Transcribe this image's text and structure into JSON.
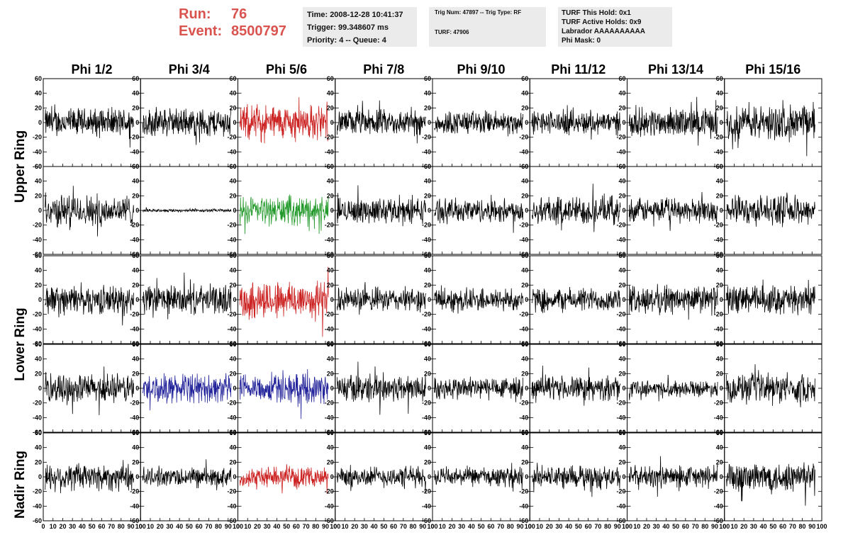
{
  "header": {
    "run_label": "Run:",
    "run_value": "76",
    "event_label": "Event:",
    "event_value": "8500797"
  },
  "info1": {
    "time": "Time: 2008-12-28 10:41:37",
    "trigger": "Trigger: 99.348607 ms",
    "priority": "Priority: 4 -- Queue: 4"
  },
  "info2": {
    "trig": "Trig Num: 47897 -- Trig Type: RF",
    "turf": "TURF: 47906"
  },
  "info3": {
    "hold": "TURF This Hold: 0x1",
    "active": "TURF Active Holds: 0x9",
    "labrador": "Labrador AAAAAAAAAA",
    "mask": "Phi Mask: 0"
  },
  "columns": [
    "Phi 1/2",
    "Phi 3/4",
    "Phi 5/6",
    "Phi 7/8",
    "Phi 9/10",
    "Phi 11/12",
    "Phi 13/14",
    "Phi 15/16"
  ],
  "row_labels": {
    "upper": "Upper Ring",
    "lower": "Lower Ring",
    "nadir": "Nadir Ring"
  },
  "colors": {
    "default": "#000000",
    "red": "#cc2222",
    "green": "#22992a",
    "blue": "#22229a",
    "info_bg": "#ebebeb",
    "header_red": "#d9534f"
  },
  "chart_data": {
    "type": "line",
    "description_of_grid": "5 rows x 8 columns of waveform panels",
    "xlim": [
      0,
      100
    ],
    "ylim": [
      -60,
      60
    ],
    "x_ticks": [
      0,
      10,
      20,
      30,
      40,
      50,
      60,
      70,
      80,
      90,
      100
    ],
    "y_ticks": [
      -60,
      -40,
      -20,
      0,
      20,
      40,
      60
    ],
    "x_tick_labels": [
      "0",
      "10",
      "20",
      "30",
      "40",
      "50",
      "60",
      "70",
      "80",
      "90",
      "100"
    ],
    "y_tick_labels": [
      "-60",
      "-40",
      "-20",
      "0",
      "20",
      "40",
      "60"
    ],
    "x_label_text": "0 10 20 30 40 50 60 70 80 90 100",
    "rows": 5,
    "panel_colors": [
      [
        "default",
        "default",
        "red",
        "default",
        "default",
        "default",
        "default",
        "default"
      ],
      [
        "default",
        "default",
        "green",
        "default",
        "default",
        "default",
        "default",
        "default"
      ],
      [
        "default",
        "default",
        "red",
        "default",
        "default",
        "default",
        "default",
        "default"
      ],
      [
        "default",
        "blue",
        "blue",
        "default",
        "default",
        "default",
        "default",
        "default"
      ],
      [
        "default",
        "default",
        "red",
        "default",
        "default",
        "default",
        "default",
        "default"
      ]
    ],
    "panel_amplitude": [
      [
        18,
        18,
        22,
        16,
        15,
        15,
        18,
        22
      ],
      [
        20,
        2,
        18,
        16,
        15,
        18,
        15,
        18
      ],
      [
        18,
        18,
        25,
        15,
        15,
        15,
        18,
        18
      ],
      [
        18,
        18,
        18,
        18,
        15,
        15,
        10,
        18
      ],
      [
        18,
        12,
        12,
        13,
        12,
        14,
        14,
        20
      ]
    ],
    "samples_per_trace": 260
  }
}
